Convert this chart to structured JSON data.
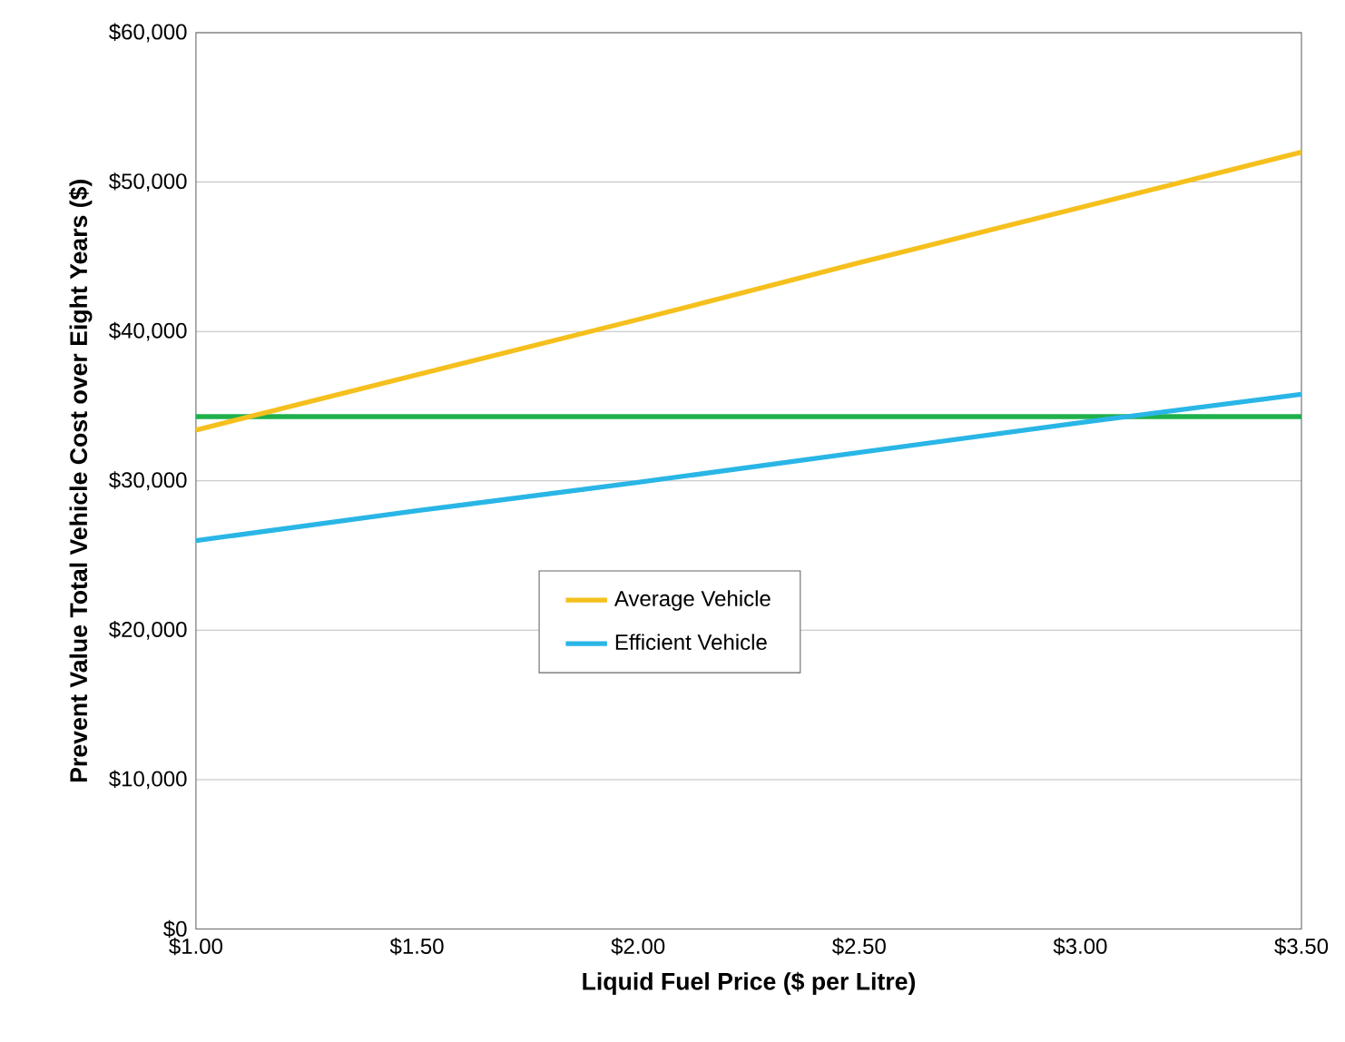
{
  "chart_data": {
    "type": "line",
    "xlabel": "Liquid Fuel Price ($ per Litre)",
    "ylabel": "Prevent Value Total Vehicle Cost over Eight Years ($)",
    "x": [
      1.0,
      1.5,
      2.0,
      2.5,
      3.0,
      3.5
    ],
    "series": [
      {
        "color": "#1fb04c",
        "values": [
          34300,
          34300,
          34300,
          34300,
          34300,
          34300
        ]
      },
      {
        "name": "Average Vehicle",
        "color": "#f5c01d",
        "values": [
          33400,
          37100,
          40800,
          44600,
          48300,
          52000
        ]
      },
      {
        "name": "Efficient Vehicle",
        "color": "#29b6e6",
        "values": [
          26000,
          28000,
          29900,
          31900,
          33900,
          35800
        ]
      }
    ],
    "xlim": [
      1.0,
      3.5
    ],
    "xticks": [
      {
        "value": 1.0,
        "label": "$1.00"
      },
      {
        "value": 1.5,
        "label": "$1.50"
      },
      {
        "value": 2.0,
        "label": "$2.00"
      },
      {
        "value": 2.5,
        "label": "$2.50"
      },
      {
        "value": 3.0,
        "label": "$3.00"
      },
      {
        "value": 3.5,
        "label": "$3.50"
      }
    ],
    "ylim": [
      0,
      60000
    ],
    "yticks": [
      {
        "value": 0,
        "label": "$0"
      },
      {
        "value": 10000,
        "label": "$10,000"
      },
      {
        "value": 20000,
        "label": "$20,000"
      },
      {
        "value": 30000,
        "label": "$30,000"
      },
      {
        "value": 40000,
        "label": "$40,000"
      },
      {
        "value": 50000,
        "label": "$50,000"
      },
      {
        "value": 60000,
        "label": "$60,000"
      }
    ],
    "grid": "y",
    "legend": "center",
    "marker": "none",
    "line_style": "solid"
  }
}
